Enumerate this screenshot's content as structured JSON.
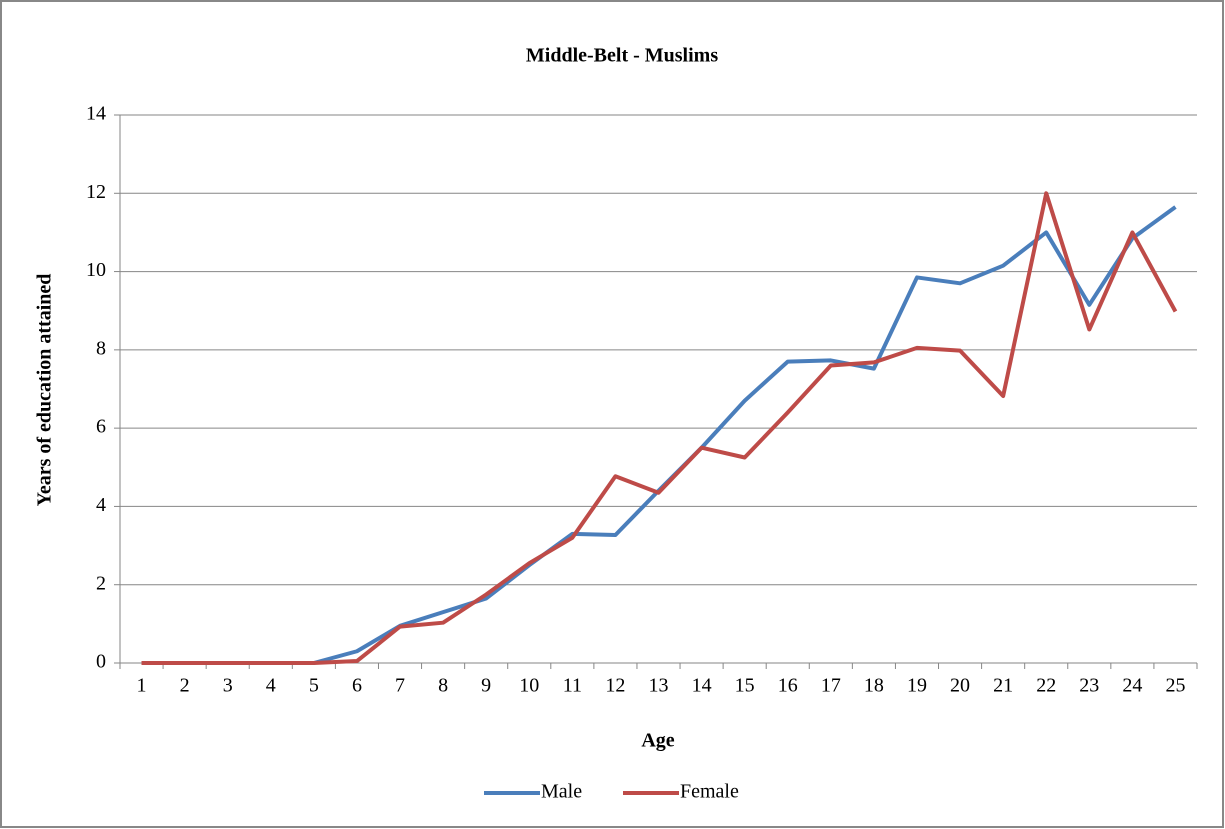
{
  "chart_data": {
    "type": "line",
    "title": "Middle-Belt - Muslims",
    "x_label": "Age",
    "y_label": "Years of education attained",
    "categories": [
      "1",
      "2",
      "3",
      "4",
      "5",
      "6",
      "7",
      "8",
      "9",
      "10",
      "11",
      "12",
      "13",
      "14",
      "15",
      "16",
      "17",
      "18",
      "19",
      "20",
      "21",
      "22",
      "23",
      "24",
      "25"
    ],
    "series": [
      {
        "name": "Male",
        "color": "#4a7ebb",
        "values": [
          0,
          0,
          0,
          0,
          0,
          0.3,
          0.95,
          1.3,
          1.65,
          2.5,
          3.3,
          3.27,
          4.4,
          5.5,
          6.7,
          7.7,
          7.73,
          7.52,
          9.85,
          9.7,
          10.15,
          11,
          9.15,
          10.85,
          11.65
        ]
      },
      {
        "name": "Female",
        "color": "#be4b48",
        "values": [
          0,
          0,
          0,
          0,
          0,
          0.05,
          0.93,
          1.03,
          1.75,
          2.55,
          3.2,
          4.77,
          4.35,
          5.5,
          5.25,
          6.4,
          7.6,
          7.68,
          8.05,
          7.98,
          6.82,
          12,
          8.52,
          11,
          8.98
        ]
      }
    ],
    "ylim": [
      0,
      14
    ],
    "yticks": [
      0,
      2,
      4,
      6,
      8,
      10,
      12,
      14
    ],
    "grid": true,
    "legend": "bottom"
  }
}
